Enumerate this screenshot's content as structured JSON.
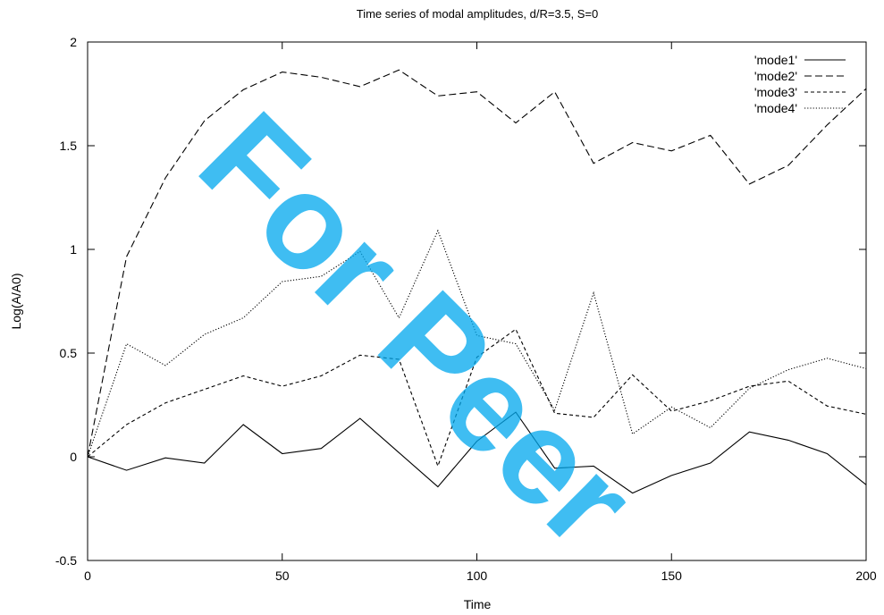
{
  "watermark": "For Peer",
  "chart_data": {
    "type": "line",
    "title": "Time series of modal amplitudes, d/R=3.5, S=0",
    "xlabel": "Time",
    "ylabel": "Log(A/A0)",
    "xlim": [
      0,
      200
    ],
    "ylim": [
      -0.5,
      2
    ],
    "xticks": [
      0,
      50,
      100,
      150,
      200
    ],
    "yticks": [
      -0.5,
      0,
      0.5,
      1,
      1.5,
      2
    ],
    "xtick_labels": [
      "0",
      "50",
      "100",
      "150",
      "200"
    ],
    "ytick_labels": [
      "-0.5",
      "0",
      "0.5",
      "1",
      "1.5",
      "2"
    ],
    "grid": false,
    "legend_position": "top-right",
    "x": [
      0,
      10,
      20,
      30,
      40,
      50,
      60,
      70,
      80,
      90,
      100,
      110,
      120,
      130,
      140,
      150,
      160,
      170,
      180,
      190,
      200
    ],
    "series": [
      {
        "name": "'mode1'",
        "dash": "solid",
        "values": [
          0,
          -0.065,
          -0.005,
          -0.03,
          0.155,
          0.015,
          0.04,
          0.185,
          0.02,
          -0.145,
          0.075,
          0.215,
          -0.055,
          -0.045,
          -0.175,
          -0.09,
          -0.03,
          0.12,
          0.08,
          0.015,
          -0.135
        ]
      },
      {
        "name": "'mode2'",
        "dash": "dashed",
        "values": [
          0,
          0.965,
          1.345,
          1.62,
          1.77,
          1.855,
          1.83,
          1.785,
          1.865,
          1.74,
          1.76,
          1.61,
          1.76,
          1.415,
          1.515,
          1.475,
          1.55,
          1.315,
          1.405,
          1.6,
          1.775
        ]
      },
      {
        "name": "'mode3'",
        "dash": "short-dash",
        "values": [
          0,
          0.155,
          0.26,
          0.325,
          0.39,
          0.34,
          0.39,
          0.49,
          0.47,
          -0.045,
          0.48,
          0.615,
          0.21,
          0.19,
          0.395,
          0.22,
          0.27,
          0.34,
          0.365,
          0.245,
          0.205
        ]
      },
      {
        "name": "'mode4'",
        "dash": "dotted",
        "values": [
          0,
          0.545,
          0.44,
          0.59,
          0.67,
          0.845,
          0.87,
          0.99,
          0.67,
          1.09,
          0.585,
          0.545,
          0.225,
          0.79,
          0.11,
          0.24,
          0.14,
          0.33,
          0.42,
          0.475,
          0.425
        ]
      }
    ]
  }
}
